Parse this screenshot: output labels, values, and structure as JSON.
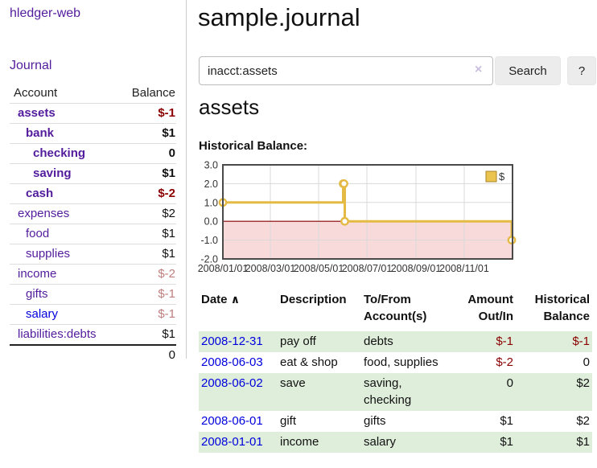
{
  "brand": "hledger-web",
  "nav": {
    "journal": "Journal"
  },
  "sidebar": {
    "col_account": "Account",
    "col_balance": "Balance",
    "accounts": [
      {
        "name": "assets",
        "balance": "$-1"
      },
      {
        "name": "bank",
        "balance": "$1"
      },
      {
        "name": "checking",
        "balance": "0"
      },
      {
        "name": "saving",
        "balance": "$1"
      },
      {
        "name": "cash",
        "balance": "$-2"
      },
      {
        "name": "expenses",
        "balance": "$2"
      },
      {
        "name": "food",
        "balance": "$1"
      },
      {
        "name": "supplies",
        "balance": "$1"
      },
      {
        "name": "income",
        "balance": "$-2"
      },
      {
        "name": "gifts",
        "balance": "$-1"
      },
      {
        "name": "salary",
        "balance": "$-1"
      },
      {
        "name": "liabilities:debts",
        "balance": "$1"
      }
    ],
    "total": "0"
  },
  "header": {
    "title": "sample.journal"
  },
  "search": {
    "value": "inacct:assets",
    "clear_icon": "×",
    "search_label": "Search",
    "help_label": "?"
  },
  "account_page": {
    "heading": "assets",
    "chart_label": "Historical Balance:"
  },
  "chart_data": {
    "type": "line",
    "title": "Historical Balance:",
    "interpolation": "step-after",
    "series": [
      {
        "name": "$",
        "color": "#e4ba45",
        "points": [
          [
            "2008-01-01",
            1
          ],
          [
            "2008-06-01",
            2
          ],
          [
            "2008-06-02",
            2
          ],
          [
            "2008-06-03",
            0
          ],
          [
            "2008-12-31",
            -1
          ]
        ]
      }
    ],
    "x_ticks": [
      {
        "date": "2008-01-01",
        "label": "2008/01/01"
      },
      {
        "date": "2008-03-01",
        "label": "2008/03/01"
      },
      {
        "date": "2008-05-01",
        "label": "2008/05/01"
      },
      {
        "date": "2008-07-01",
        "label": "2008/07/01"
      },
      {
        "date": "2008-09-01",
        "label": "2008/09/01"
      },
      {
        "date": "2008-11-01",
        "label": "2008/11/01"
      }
    ],
    "xlim": [
      "2008-01-01",
      "2009-01-01"
    ],
    "y_ticks": [
      "3.0",
      "2.0",
      "1.0",
      "0.0",
      "-1.0",
      "-2.0"
    ],
    "ylim": [
      -2,
      3
    ],
    "legend": {
      "label": "$",
      "position": "top-right"
    },
    "grid": true,
    "negative_region_color": "#f9dada",
    "zero_line_color": "#8b0000"
  },
  "register": {
    "columns": {
      "date": "Date",
      "sort_icon": "∧",
      "description": "Description",
      "accounts_l1": "To/From",
      "accounts_l2": "Account(s)",
      "amount_l1": "Amount",
      "amount_l2": "Out/In",
      "balance_l1": "Historical",
      "balance_l2": "Balance"
    },
    "rows": [
      {
        "date": "2008-12-31",
        "description": "pay off",
        "accounts": "debts",
        "amount": "$-1",
        "balance": "$-1"
      },
      {
        "date": "2008-06-03",
        "description": "eat & shop",
        "accounts": "food, supplies",
        "amount": "$-2",
        "balance": "0"
      },
      {
        "date": "2008-06-02",
        "description": "save",
        "accounts": "saving, checking",
        "amount": "0",
        "balance": "$2"
      },
      {
        "date": "2008-06-01",
        "description": "gift",
        "accounts": "gifts",
        "amount": "$1",
        "balance": "$2"
      },
      {
        "date": "2008-01-01",
        "description": "income",
        "accounts": "salary",
        "amount": "$1",
        "balance": "$1"
      }
    ]
  }
}
